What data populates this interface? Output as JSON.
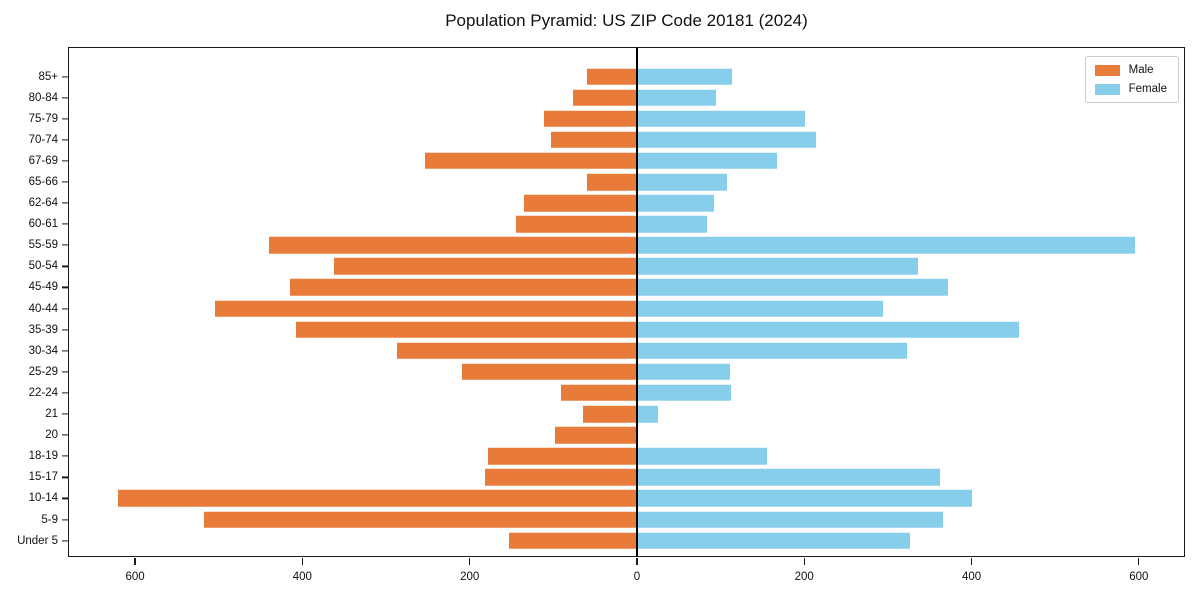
{
  "title": "Population Pyramid: US ZIP Code 20181 (2024)",
  "colors": {
    "male": "#E87B39",
    "female": "#87CEEB",
    "axis": "#1a1a1a"
  },
  "legend": {
    "position": "upper right",
    "entries": [
      {
        "label": "Male",
        "color_key": "male"
      },
      {
        "label": "Female",
        "color_key": "female"
      }
    ]
  },
  "chart_data": {
    "type": "bar",
    "variant": "population-pyramid",
    "orientation": "horizontal",
    "title": "Population Pyramid: US ZIP Code 20181 (2024)",
    "grid": false,
    "categories": [
      "85+",
      "80-84",
      "75-79",
      "70-74",
      "67-69",
      "65-66",
      "62-64",
      "60-61",
      "55-59",
      "50-54",
      "45-49",
      "40-44",
      "35-39",
      "30-34",
      "25-29",
      "22-24",
      "21",
      "20",
      "18-19",
      "15-17",
      "10-14",
      "5-9",
      "Under 5"
    ],
    "series": [
      {
        "name": "Male",
        "side": "left",
        "values": [
          60,
          76,
          111,
          103,
          253,
          60,
          135,
          145,
          440,
          362,
          415,
          505,
          408,
          287,
          209,
          91,
          64,
          98,
          178,
          182,
          620,
          518,
          153
        ]
      },
      {
        "name": "Female",
        "side": "right",
        "values": [
          114,
          94,
          201,
          214,
          167,
          108,
          92,
          84,
          595,
          336,
          372,
          294,
          457,
          323,
          111,
          112,
          25,
          0,
          155,
          362,
          400,
          366,
          327
        ]
      }
    ],
    "x_tick_values": [
      -600,
      -400,
      -200,
      0,
      200,
      400,
      600
    ],
    "x_tick_labels": [
      "600",
      "400",
      "200",
      "0",
      "200",
      "400",
      "600"
    ],
    "xlim": [
      -679,
      654
    ],
    "zero_line": true
  }
}
